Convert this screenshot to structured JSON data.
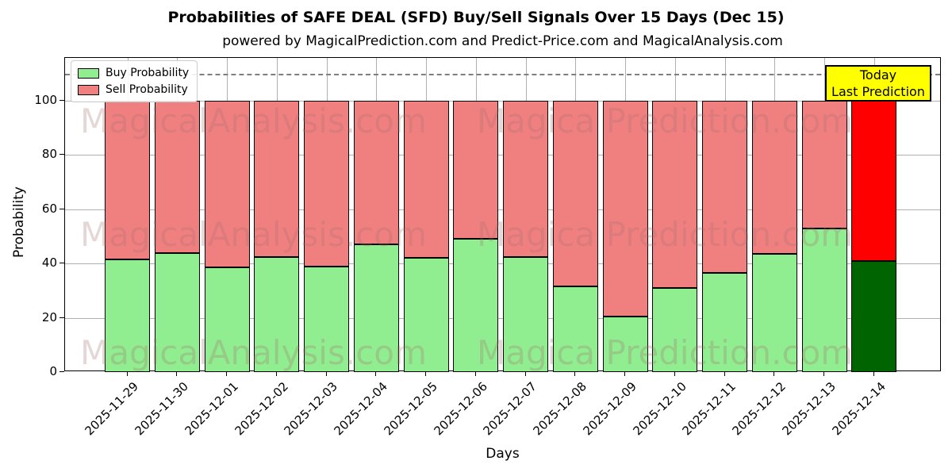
{
  "figure": {
    "title": "Probabilities of SAFE DEAL (SFD) Buy/Sell Signals Over 15 Days (Dec 15)",
    "subtitle": "powered by MagicalPrediction.com and Predict-Price.com and MagicalAnalysis.com"
  },
  "chart_data": {
    "type": "bar",
    "stacked": true,
    "title": "Probabilities of SAFE DEAL (SFD) Buy/Sell Signals Over 15 Days (Dec 15)",
    "subtitle": "powered by MagicalPrediction.com and Predict-Price.com and MagicalAnalysis.com",
    "categories": [
      "2025-11-29",
      "2025-11-30",
      "2025-12-01",
      "2025-12-02",
      "2025-12-03",
      "2025-12-04",
      "2025-12-05",
      "2025-12-06",
      "2025-12-07",
      "2025-12-08",
      "2025-12-09",
      "2025-12-10",
      "2025-12-11",
      "2025-12-12",
      "2025-12-13",
      "2025-12-14"
    ],
    "series": [
      {
        "name": "Buy Probability",
        "color": "#90ee90",
        "last_bar_color": "#006400",
        "values": [
          41.5,
          44,
          38.5,
          42.5,
          39,
          47,
          42,
          49,
          42.5,
          31.5,
          20.5,
          31,
          36.5,
          43.5,
          53,
          41
        ]
      },
      {
        "name": "Sell Probability",
        "color": "#f08080",
        "last_bar_color": "#ff0000",
        "values": [
          58.5,
          56,
          61.5,
          57.5,
          61,
          53,
          58,
          51,
          57.5,
          68.5,
          79.5,
          69,
          63.5,
          56.5,
          47,
          59
        ]
      }
    ],
    "xlabel": "Days",
    "ylabel": "Probability",
    "yticks": [
      0,
      20,
      40,
      60,
      80,
      100
    ],
    "ylim": [
      0,
      115.8
    ],
    "dashed_line_y": 110,
    "grid": true,
    "legend_position": "upper left",
    "bar_edge_color": "#000000"
  },
  "annotation": {
    "line1": "Today",
    "line2": "Last Prediction",
    "bg_color": "#ffff00"
  },
  "watermark": {
    "left_text": "MagicalAnalysis.com",
    "right_text": "Magica Prediction.com",
    "rows": 3
  }
}
